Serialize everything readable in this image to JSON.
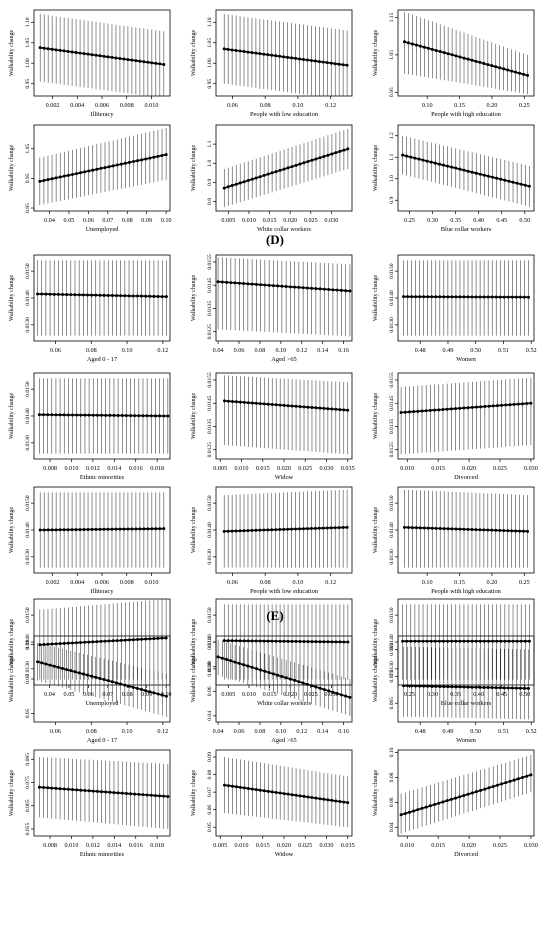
{
  "sections": [
    "(D)",
    "(E)"
  ],
  "chart_data": [
    {
      "type": "line",
      "xlabel": "Illiteracy",
      "ylabel": "Walkability change",
      "x_ticks": [
        0.002,
        0.004,
        0.006,
        0.008,
        0.01
      ],
      "x_tick_labels": [
        "0.002",
        "0.004",
        "0.006",
        "0.008",
        "0.010"
      ],
      "y_ticks": [
        0.95,
        1.0,
        1.05,
        1.1
      ],
      "y_tick_labels": [
        "0.95",
        "1.00",
        "1.05",
        "1.10"
      ],
      "xlim": [
        0.0005,
        0.0115
      ],
      "ylim": [
        0.92,
        1.13
      ],
      "x_range": [
        0.001,
        0.011
      ],
      "y_start": 1.038,
      "y_end": 0.997,
      "lower_start": 0.955,
      "lower_end": 0.915,
      "upper_start": 1.12,
      "upper_end": 1.078
    },
    {
      "type": "line",
      "xlabel": "People with low education",
      "ylabel": "Walkability change",
      "x_ticks": [
        0.06,
        0.08,
        0.1,
        0.12
      ],
      "x_tick_labels": [
        "0.06",
        "0.08",
        "0.10",
        "0.12"
      ],
      "y_ticks": [
        0.95,
        1.0,
        1.05,
        1.1
      ],
      "y_tick_labels": [
        "0.95",
        "1.00",
        "1.05",
        "1.10"
      ],
      "xlim": [
        0.05,
        0.133
      ],
      "ylim": [
        0.92,
        1.13
      ],
      "x_range": [
        0.055,
        0.13
      ],
      "y_start": 1.035,
      "y_end": 0.995,
      "lower_start": 0.95,
      "lower_end": 0.91,
      "upper_start": 1.12,
      "upper_end": 1.08
    },
    {
      "type": "line",
      "xlabel": "People with high education",
      "ylabel": "Walkability change",
      "x_ticks": [
        0.1,
        0.15,
        0.2,
        0.25
      ],
      "x_tick_labels": [
        "0.10",
        "0.15",
        "0.20",
        "0.25"
      ],
      "y_ticks": [
        0.95,
        1.05,
        1.15
      ],
      "y_tick_labels": [
        "0.95",
        "1.05",
        "1.15"
      ],
      "xlim": [
        0.055,
        0.265
      ],
      "ylim": [
        0.94,
        1.17
      ],
      "x_range": [
        0.065,
        0.255
      ],
      "y_start": 1.085,
      "y_end": 0.995,
      "lower_start": 1.0,
      "lower_end": 0.945,
      "upper_start": 1.165,
      "upper_end": 1.05
    },
    {
      "type": "line",
      "xlabel": "Unemployed",
      "ylabel": "Walkability change",
      "x_ticks": [
        0.04,
        0.05,
        0.06,
        0.07,
        0.08,
        0.09,
        0.1
      ],
      "x_tick_labels": [
        "0.04",
        "0.05",
        "0.06",
        "0.07",
        "0.08",
        "0.09",
        "0.10"
      ],
      "y_ticks": [
        0.85,
        0.95,
        1.05
      ],
      "y_tick_labels": [
        "0.85",
        "0.95",
        "1.05"
      ],
      "xlim": [
        0.032,
        0.102
      ],
      "ylim": [
        0.84,
        1.13
      ],
      "x_range": [
        0.035,
        0.1
      ],
      "y_start": 0.94,
      "y_end": 1.03,
      "lower_start": 0.86,
      "lower_end": 0.945,
      "upper_start": 1.02,
      "upper_end": 1.12
    },
    {
      "type": "line",
      "xlabel": "White collar workers",
      "ylabel": "Walkability change",
      "x_ticks": [
        0.005,
        0.01,
        0.015,
        0.02,
        0.025,
        0.03
      ],
      "x_tick_labels": [
        "0.005",
        "0.010",
        "0.015",
        "0.020",
        "0.025",
        "0.030"
      ],
      "y_ticks": [
        0.8,
        0.9,
        1.0,
        1.1
      ],
      "y_tick_labels": [
        "0.8",
        "0.9",
        "1.0",
        "1.1"
      ],
      "xlim": [
        0.002,
        0.035
      ],
      "ylim": [
        0.75,
        1.2
      ],
      "x_range": [
        0.004,
        0.034
      ],
      "y_start": 0.87,
      "y_end": 1.075,
      "lower_start": 0.77,
      "lower_end": 0.97,
      "upper_start": 0.97,
      "upper_end": 1.18
    },
    {
      "type": "line",
      "xlabel": "Blue collar workers",
      "ylabel": "Walkability change",
      "x_ticks": [
        0.25,
        0.3,
        0.35,
        0.4,
        0.45,
        0.5
      ],
      "x_tick_labels": [
        "0.25",
        "0.30",
        "0.35",
        "0.40",
        "0.45",
        "0.50"
      ],
      "y_ticks": [
        0.9,
        1.0,
        1.1,
        1.2
      ],
      "y_tick_labels": [
        "0.9",
        "1.0",
        "1.1",
        "1.2"
      ],
      "xlim": [
        0.225,
        0.52
      ],
      "ylim": [
        0.85,
        1.25
      ],
      "x_range": [
        0.235,
        0.51
      ],
      "y_start": 1.11,
      "y_end": 0.965,
      "lower_start": 1.02,
      "lower_end": 0.87,
      "upper_start": 1.2,
      "upper_end": 1.06
    },
    {
      "type": "line",
      "xlabel": "Aged 0 - 17",
      "ylabel": "Walkability change",
      "x_ticks": [
        0.06,
        0.08,
        0.1,
        0.12
      ],
      "x_tick_labels": [
        "0.06",
        "0.08",
        "0.10",
        "0.12"
      ],
      "y_ticks": [
        0.013,
        0.014,
        0.015
      ],
      "y_tick_labels": [
        "0.0130",
        "0.0140",
        "0.0150"
      ],
      "xlim": [
        0.048,
        0.124
      ],
      "ylim": [
        0.0124,
        0.0156
      ],
      "x_range": [
        0.05,
        0.122
      ],
      "y_start": 0.01415,
      "y_end": 0.01405,
      "lower_start": 0.0126,
      "lower_end": 0.0126,
      "upper_start": 0.0154,
      "upper_end": 0.0154
    },
    {
      "type": "line",
      "xlabel": "Aged >65",
      "ylabel": "Walkability change",
      "x_ticks": [
        0.04,
        0.06,
        0.08,
        0.1,
        0.12,
        0.14,
        0.16
      ],
      "x_tick_labels": [
        "0.04",
        "0.06",
        "0.08",
        "0.10",
        "0.12",
        "0.14",
        "0.16"
      ],
      "y_ticks": [
        0.0125,
        0.0135,
        0.0145,
        0.0155
      ],
      "y_tick_labels": [
        "0.0125",
        "0.0135",
        "0.0145",
        "0.0155"
      ],
      "xlim": [
        0.038,
        0.168
      ],
      "ylim": [
        0.0121,
        0.0158
      ],
      "x_range": [
        0.04,
        0.166
      ],
      "y_start": 0.01465,
      "y_end": 0.01425,
      "lower_start": 0.0126,
      "lower_end": 0.0123,
      "upper_start": 0.0157,
      "upper_end": 0.0154
    },
    {
      "type": "line",
      "xlabel": "Women",
      "ylabel": "Walkability change",
      "x_ticks": [
        0.48,
        0.49,
        0.5,
        0.51,
        0.52
      ],
      "x_tick_labels": [
        "0.48",
        "0.49",
        "0.50",
        "0.51",
        "0.52"
      ],
      "y_ticks": [
        0.013,
        0.014,
        0.015
      ],
      "y_tick_labels": [
        "0.0130",
        "0.0140",
        "0.0150"
      ],
      "xlim": [
        0.472,
        0.521
      ],
      "ylim": [
        0.0124,
        0.0156
      ],
      "x_range": [
        0.474,
        0.519
      ],
      "y_start": 0.01405,
      "y_end": 0.01403,
      "lower_start": 0.0126,
      "lower_end": 0.0126,
      "upper_start": 0.0154,
      "upper_end": 0.0154
    },
    {
      "type": "line",
      "xlabel": "Ethnic minorities",
      "ylabel": "Walkability change",
      "x_ticks": [
        0.008,
        0.01,
        0.012,
        0.014,
        0.016,
        0.018
      ],
      "x_tick_labels": [
        "0.008",
        "0.010",
        "0.012",
        "0.014",
        "0.016",
        "0.018"
      ],
      "y_ticks": [
        0.013,
        0.014,
        0.015
      ],
      "y_tick_labels": [
        "0.0130",
        "0.0140",
        "0.0150"
      ],
      "xlim": [
        0.0065,
        0.0192
      ],
      "ylim": [
        0.0124,
        0.0156
      ],
      "x_range": [
        0.007,
        0.019
      ],
      "y_start": 0.01405,
      "y_end": 0.014,
      "lower_start": 0.0126,
      "lower_end": 0.0126,
      "upper_start": 0.0154,
      "upper_end": 0.0154
    },
    {
      "type": "line",
      "xlabel": "Widow",
      "ylabel": "Walkability change",
      "x_ticks": [
        0.005,
        0.01,
        0.015,
        0.02,
        0.025,
        0.03,
        0.035
      ],
      "x_tick_labels": [
        "0.005",
        "0.010",
        "0.015",
        "0.020",
        "0.025",
        "0.030",
        "0.035"
      ],
      "y_ticks": [
        0.0125,
        0.0135,
        0.0145,
        0.0155
      ],
      "y_tick_labels": [
        "0.0125",
        "0.0135",
        "0.0145",
        "0.0155"
      ],
      "xlim": [
        0.004,
        0.036
      ],
      "ylim": [
        0.0121,
        0.0158
      ],
      "x_range": [
        0.006,
        0.035
      ],
      "y_start": 0.0146,
      "y_end": 0.0142,
      "lower_start": 0.0127,
      "lower_end": 0.0123,
      "upper_start": 0.0157,
      "upper_end": 0.0154
    },
    {
      "type": "line",
      "xlabel": "Divorced",
      "ylabel": "Walkability change",
      "x_ticks": [
        0.01,
        0.015,
        0.02,
        0.025,
        0.03
      ],
      "x_tick_labels": [
        "0.010",
        "0.015",
        "0.020",
        "0.025",
        "0.030"
      ],
      "y_ticks": [
        0.0125,
        0.0135,
        0.0145,
        0.0155
      ],
      "y_tick_labels": [
        "0.0125",
        "0.0135",
        "0.0145",
        "0.0155"
      ],
      "xlim": [
        0.0085,
        0.0305
      ],
      "ylim": [
        0.0121,
        0.0158
      ],
      "x_range": [
        0.009,
        0.03
      ],
      "y_start": 0.0141,
      "y_end": 0.0145,
      "lower_start": 0.0123,
      "lower_end": 0.0127,
      "upper_start": 0.0152,
      "upper_end": 0.0156
    },
    {
      "type": "line",
      "xlabel": "Illiteracy",
      "ylabel": "Walkability change",
      "x_ticks": [
        0.002,
        0.004,
        0.006,
        0.008,
        0.01
      ],
      "x_tick_labels": [
        "0.002",
        "0.004",
        "0.006",
        "0.008",
        "0.010"
      ],
      "y_ticks": [
        0.013,
        0.014,
        0.015
      ],
      "y_tick_labels": [
        "0.0130",
        "0.0140",
        "0.0150"
      ],
      "xlim": [
        0.0005,
        0.0115
      ],
      "ylim": [
        0.0124,
        0.0156
      ],
      "x_range": [
        0.001,
        0.011
      ],
      "y_start": 0.014,
      "y_end": 0.01405,
      "lower_start": 0.0126,
      "lower_end": 0.0126,
      "upper_start": 0.0154,
      "upper_end": 0.0154
    },
    {
      "type": "line",
      "xlabel": "People with low education",
      "ylabel": "Walkability change",
      "x_ticks": [
        0.06,
        0.08,
        0.1,
        0.12
      ],
      "x_tick_labels": [
        "0.06",
        "0.08",
        "0.10",
        "0.12"
      ],
      "y_ticks": [
        0.013,
        0.014,
        0.015
      ],
      "y_tick_labels": [
        "0.0130",
        "0.0140",
        "0.0150"
      ],
      "xlim": [
        0.05,
        0.133
      ],
      "ylim": [
        0.0124,
        0.0156
      ],
      "x_range": [
        0.055,
        0.13
      ],
      "y_start": 0.01395,
      "y_end": 0.0141,
      "lower_start": 0.0126,
      "lower_end": 0.0126,
      "upper_start": 0.0153,
      "upper_end": 0.0155
    },
    {
      "type": "line",
      "xlabel": "People with high education",
      "ylabel": "Walkability change",
      "x_ticks": [
        0.1,
        0.15,
        0.2,
        0.25
      ],
      "x_tick_labels": [
        "0.10",
        "0.15",
        "0.20",
        "0.25"
      ],
      "y_ticks": [
        0.013,
        0.014,
        0.015
      ],
      "y_tick_labels": [
        "0.0130",
        "0.0140",
        "0.0150"
      ],
      "xlim": [
        0.055,
        0.265
      ],
      "ylim": [
        0.0124,
        0.0156
      ],
      "x_range": [
        0.065,
        0.255
      ],
      "y_start": 0.0141,
      "y_end": 0.01395,
      "lower_start": 0.0126,
      "lower_end": 0.0126,
      "upper_start": 0.0155,
      "upper_end": 0.0153
    },
    {
      "type": "line",
      "xlabel": "Unemployed",
      "ylabel": "Walkability change",
      "x_ticks": [
        0.04,
        0.05,
        0.06,
        0.07,
        0.08,
        0.09,
        0.1
      ],
      "x_tick_labels": [
        "0.04",
        "0.05",
        "0.06",
        "0.07",
        "0.08",
        "0.09",
        "0.10"
      ],
      "y_ticks": [
        0.013,
        0.014,
        0.015
      ],
      "y_tick_labels": [
        "0.0130",
        "0.0140",
        "0.0150"
      ],
      "xlim": [
        0.032,
        0.102
      ],
      "ylim": [
        0.0124,
        0.0156
      ],
      "x_range": [
        0.035,
        0.1
      ],
      "y_start": 0.0139,
      "y_end": 0.01415,
      "lower_start": 0.0126,
      "lower_end": 0.0126,
      "upper_start": 0.0152,
      "upper_end": 0.0156
    },
    {
      "type": "line",
      "xlabel": "White collar workers",
      "ylabel": "Walkability change",
      "x_ticks": [
        0.005,
        0.01,
        0.015,
        0.02,
        0.025,
        0.03
      ],
      "x_tick_labels": [
        "0.005",
        "0.010",
        "0.015",
        "0.020",
        "0.025",
        "0.030"
      ],
      "y_ticks": [
        0.013,
        0.014,
        0.015
      ],
      "y_tick_labels": [
        "0.0130",
        "0.0140",
        "0.0150"
      ],
      "xlim": [
        0.002,
        0.035
      ],
      "ylim": [
        0.0124,
        0.0156
      ],
      "x_range": [
        0.004,
        0.034
      ],
      "y_start": 0.01405,
      "y_end": 0.014,
      "lower_start": 0.0126,
      "lower_end": 0.0126,
      "upper_start": 0.0154,
      "upper_end": 0.0154
    },
    {
      "type": "line",
      "xlabel": "Blue collar workers",
      "ylabel": "Walkability change",
      "x_ticks": [
        0.25,
        0.3,
        0.35,
        0.4,
        0.45,
        0.5
      ],
      "x_tick_labels": [
        "0.25",
        "0.30",
        "0.35",
        "0.40",
        "0.45",
        "0.50"
      ],
      "y_ticks": [
        0.013,
        0.014,
        0.015
      ],
      "y_tick_labels": [
        "0.0130",
        "0.0140",
        "0.0150"
      ],
      "xlim": [
        0.225,
        0.52
      ],
      "ylim": [
        0.0124,
        0.0156
      ],
      "x_range": [
        0.235,
        0.51
      ],
      "y_start": 0.01403,
      "y_end": 0.01403,
      "lower_start": 0.0126,
      "lower_end": 0.0126,
      "upper_start": 0.0154,
      "upper_end": 0.0154
    },
    {
      "type": "line",
      "xlabel": "Aged 0 - 17",
      "ylabel": "Walkability change",
      "x_ticks": [
        0.06,
        0.08,
        0.1,
        0.12
      ],
      "x_tick_labels": [
        "0.06",
        "0.08",
        "0.10",
        "0.12"
      ],
      "y_ticks": [
        0.05,
        0.07,
        0.09
      ],
      "y_tick_labels": [
        "0.05",
        "0.07",
        "0.09"
      ],
      "xlim": [
        0.048,
        0.124
      ],
      "ylim": [
        0.045,
        0.095
      ],
      "x_range": [
        0.05,
        0.122
      ],
      "y_start": 0.08,
      "y_end": 0.06,
      "lower_start": 0.069,
      "lower_end": 0.048,
      "upper_start": 0.091,
      "upper_end": 0.073
    },
    {
      "type": "line",
      "xlabel": "Aged >65",
      "ylabel": "Walkability change",
      "x_ticks": [
        0.04,
        0.06,
        0.08,
        0.1,
        0.12,
        0.14,
        0.16
      ],
      "x_tick_labels": [
        "0.04",
        "0.06",
        "0.08",
        "0.10",
        "0.12",
        "0.14",
        "0.16"
      ],
      "y_ticks": [
        0.04,
        0.06,
        0.08,
        0.1
      ],
      "y_tick_labels": [
        "0.04",
        "0.06",
        "0.08",
        "0.10"
      ],
      "xlim": [
        0.038,
        0.168
      ],
      "ylim": [
        0.035,
        0.105
      ],
      "x_range": [
        0.04,
        0.166
      ],
      "y_start": 0.088,
      "y_end": 0.055,
      "lower_start": 0.073,
      "lower_end": 0.04,
      "upper_start": 0.102,
      "upper_end": 0.07
    },
    {
      "type": "line",
      "xlabel": "Women",
      "ylabel": "Walkability change",
      "x_ticks": [
        0.48,
        0.49,
        0.5,
        0.51,
        0.52
      ],
      "x_tick_labels": [
        "0.48",
        "0.49",
        "0.50",
        "0.51",
        "0.52"
      ],
      "y_ticks": [
        0.065,
        0.075,
        0.085
      ],
      "y_tick_labels": [
        "0.065",
        "0.075",
        "0.085"
      ],
      "xlim": [
        0.472,
        0.521
      ],
      "ylim": [
        0.058,
        0.09
      ],
      "x_range": [
        0.474,
        0.519
      ],
      "y_start": 0.0715,
      "y_end": 0.0705,
      "lower_start": 0.06,
      "lower_end": 0.059,
      "upper_start": 0.086,
      "upper_end": 0.085
    },
    {
      "type": "line",
      "xlabel": "Ethnic minorities",
      "ylabel": "Walkability change",
      "x_ticks": [
        0.008,
        0.01,
        0.012,
        0.014,
        0.016,
        0.018
      ],
      "x_tick_labels": [
        "0.008",
        "0.010",
        "0.012",
        "0.014",
        "0.016",
        "0.018"
      ],
      "y_ticks": [
        0.055,
        0.065,
        0.075,
        0.085
      ],
      "y_tick_labels": [
        "0.055",
        "0.065",
        "0.075",
        "0.085"
      ],
      "xlim": [
        0.0065,
        0.0192
      ],
      "ylim": [
        0.052,
        0.089
      ],
      "x_range": [
        0.007,
        0.019
      ],
      "y_start": 0.073,
      "y_end": 0.069,
      "lower_start": 0.06,
      "lower_end": 0.055,
      "upper_start": 0.086,
      "upper_end": 0.083
    },
    {
      "type": "line",
      "xlabel": "Widow",
      "ylabel": "Walkability change",
      "x_ticks": [
        0.005,
        0.01,
        0.015,
        0.02,
        0.025,
        0.03,
        0.035
      ],
      "x_tick_labels": [
        "0.005",
        "0.010",
        "0.015",
        "0.020",
        "0.025",
        "0.030",
        "0.035"
      ],
      "y_ticks": [
        0.05,
        0.06,
        0.07,
        0.08,
        0.09
      ],
      "y_tick_labels": [
        "0.05",
        "0.06",
        "0.07",
        "0.08",
        "0.09"
      ],
      "xlim": [
        0.004,
        0.036
      ],
      "ylim": [
        0.045,
        0.094
      ],
      "x_range": [
        0.006,
        0.035
      ],
      "y_start": 0.074,
      "y_end": 0.064,
      "lower_start": 0.058,
      "lower_end": 0.05,
      "upper_start": 0.09,
      "upper_end": 0.079
    },
    {
      "type": "line",
      "xlabel": "Divorced",
      "ylabel": "Walkability change",
      "x_ticks": [
        0.01,
        0.015,
        0.02,
        0.025,
        0.03
      ],
      "x_tick_labels": [
        "0.010",
        "0.015",
        "0.020",
        "0.025",
        "0.030"
      ],
      "y_ticks": [
        0.04,
        0.06,
        0.08,
        0.1
      ],
      "y_tick_labels": [
        "0.04",
        "0.06",
        "0.08",
        "0.10"
      ],
      "xlim": [
        0.0085,
        0.0305
      ],
      "ylim": [
        0.033,
        0.102
      ],
      "x_range": [
        0.009,
        0.03
      ],
      "y_start": 0.05,
      "y_end": 0.082,
      "lower_start": 0.035,
      "lower_end": 0.068,
      "upper_start": 0.067,
      "upper_end": 0.098
    }
  ]
}
